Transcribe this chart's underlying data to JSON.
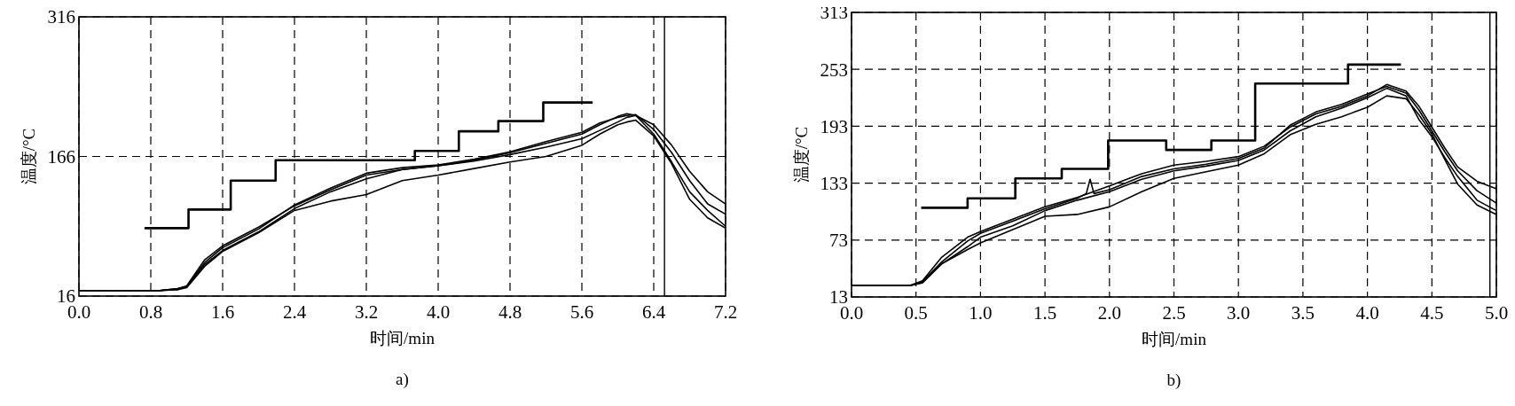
{
  "chart_data": [
    {
      "type": "line",
      "xlabel": "时间/min",
      "ylabel": "温度/°C",
      "annotations": [
        "a)"
      ],
      "xlim": [
        0,
        7.2
      ],
      "ylim": [
        16,
        316
      ],
      "xticks": [
        {
          "value": 0,
          "label": "0.0"
        },
        0.8,
        1.6,
        2.4,
        3.2,
        {
          "value": 4,
          "label": "4.0"
        },
        4.8,
        5.6,
        6.4,
        7.2
      ],
      "yticks": [
        16,
        166,
        316
      ],
      "grid": true,
      "line_style": "solid",
      "ref_lines": [
        {
          "axis": "x",
          "value": 6.52,
          "color": "#000000",
          "line_style": "solid"
        }
      ],
      "series": [
        {
          "type": "step",
          "color": "#000000",
          "x": [
            0.73,
            1.22,
            1.69,
            2.19,
            3.74,
            4.23,
            4.67,
            5.17,
            5.72
          ],
          "values": [
            89,
            109,
            140,
            162,
            172,
            193,
            204,
            224,
            224
          ]
        },
        {
          "color": "#000000",
          "x": [
            0,
            0.9,
            1.1,
            1.2,
            1.4,
            1.6,
            2.0,
            2.4,
            2.8,
            3.2,
            3.6,
            4.0,
            4.4,
            4.8,
            5.2,
            5.6,
            5.8,
            6.0,
            6.1,
            6.2,
            6.4,
            6.6,
            6.8,
            7.0,
            7.2
          ],
          "values": [
            22,
            22,
            24,
            27,
            55,
            70,
            90,
            113,
            130,
            146,
            152,
            156,
            162,
            170,
            180,
            190,
            200,
            209,
            212,
            210,
            190,
            160,
            128,
            108,
            91
          ]
        },
        {
          "color": "#000000",
          "x": [
            0,
            0.9,
            1.1,
            1.2,
            1.4,
            1.6,
            2.0,
            2.4,
            2.8,
            3.2,
            3.6,
            4.0,
            4.4,
            4.8,
            5.2,
            5.6,
            5.8,
            6.0,
            6.1,
            6.2,
            6.4,
            6.6,
            6.8,
            7.0,
            7.2
          ],
          "values": [
            22,
            22,
            24,
            26,
            52,
            68,
            88,
            114,
            132,
            148,
            154,
            157,
            163,
            171,
            182,
            192,
            202,
            208,
            210,
            211,
            195,
            170,
            140,
            115,
            104
          ]
        },
        {
          "color": "#000000",
          "x": [
            0,
            0.9,
            1.1,
            1.2,
            1.4,
            1.6,
            2.0,
            2.4,
            2.8,
            3.2,
            3.6,
            4.0,
            4.4,
            4.8,
            5.2,
            5.6,
            5.8,
            6.0,
            6.1,
            6.2,
            6.4,
            6.6,
            6.8,
            7.0,
            7.2
          ],
          "values": [
            22,
            22,
            23,
            26,
            50,
            65,
            85,
            110,
            128,
            142,
            152,
            156,
            161,
            168,
            176,
            185,
            194,
            203,
            208,
            210,
            200,
            178,
            150,
            128,
            115
          ]
        },
        {
          "color": "#000000",
          "x": [
            0,
            0.9,
            1.1,
            1.2,
            1.4,
            1.6,
            2.0,
            2.4,
            2.8,
            3.2,
            3.6,
            4.0,
            4.4,
            4.8,
            5.2,
            5.6,
            5.8,
            6.0,
            6.1,
            6.2,
            6.4,
            6.6,
            6.8,
            7.0,
            7.2
          ],
          "values": [
            22,
            22,
            23,
            25,
            48,
            64,
            84,
            108,
            118,
            125,
            140,
            146,
            153,
            160,
            166,
            178,
            190,
            200,
            203,
            205,
            188,
            158,
            120,
            100,
            89
          ]
        }
      ]
    },
    {
      "type": "line",
      "xlabel": "时间/min",
      "ylabel": "温度/°C",
      "annotations": [
        "b)"
      ],
      "xlim": [
        0,
        5
      ],
      "ylim": [
        13,
        313
      ],
      "xticks": [
        {
          "value": 0,
          "label": "0.0"
        },
        0.5,
        {
          "value": 1,
          "label": "1.0"
        },
        1.5,
        {
          "value": 2,
          "label": "2.0"
        },
        2.5,
        {
          "value": 3,
          "label": "3.0"
        },
        3.5,
        {
          "value": 4,
          "label": "4.0"
        },
        4.5,
        {
          "value": 5,
          "label": "5.0"
        }
      ],
      "yticks": [
        13,
        73,
        133,
        193,
        253,
        313
      ],
      "grid": true,
      "line_style": "solid",
      "ref_lines": [
        {
          "axis": "x",
          "value": 4.95,
          "color": "#000000",
          "line_style": "solid"
        }
      ],
      "series": [
        {
          "type": "step",
          "color": "#000000",
          "x": [
            0.54,
            0.9,
            1.27,
            1.63,
            1.99,
            2.44,
            2.79,
            3.13,
            3.85,
            4.26
          ],
          "values": [
            107,
            117,
            138,
            148,
            178,
            168,
            178,
            238,
            258,
            258
          ]
        },
        {
          "color": "#000000",
          "x": [
            0,
            0.45,
            0.55,
            0.7,
            0.9,
            1.0,
            1.25,
            1.5,
            1.75,
            2.0,
            2.25,
            2.5,
            2.75,
            3.0,
            3.2,
            3.4,
            3.6,
            3.8,
            4.0,
            4.15,
            4.3,
            4.4,
            4.5,
            4.6,
            4.7,
            4.85,
            5.0
          ],
          "values": [
            25,
            25,
            30,
            55,
            76,
            82,
            95,
            108,
            118,
            130,
            143,
            152,
            156,
            161,
            172,
            192,
            206,
            214,
            225,
            237,
            230,
            214,
            192,
            170,
            150,
            135,
            127
          ]
        },
        {
          "color": "#000000",
          "x": [
            0,
            0.45,
            0.55,
            0.7,
            0.9,
            1.0,
            1.25,
            1.5,
            1.75,
            1.82,
            1.85,
            1.88,
            2.0,
            2.25,
            2.5,
            2.75,
            3.0,
            3.2,
            3.4,
            3.6,
            3.8,
            4.0,
            4.15,
            4.3,
            4.4,
            4.5,
            4.6,
            4.7,
            4.85,
            5.0
          ],
          "values": [
            25,
            25,
            29,
            50,
            72,
            80,
            93,
            106,
            117,
            122,
            137,
            122,
            126,
            140,
            148,
            153,
            159,
            170,
            194,
            208,
            216,
            227,
            235,
            228,
            210,
            188,
            166,
            146,
            125,
            112
          ]
        },
        {
          "color": "#000000",
          "x": [
            0,
            0.45,
            0.55,
            0.7,
            0.9,
            1.0,
            1.25,
            1.5,
            1.75,
            2.0,
            2.25,
            2.5,
            2.75,
            3.0,
            3.2,
            3.4,
            3.6,
            3.8,
            4.0,
            4.15,
            4.3,
            4.4,
            4.5,
            4.6,
            4.7,
            4.85,
            5.0
          ],
          "values": [
            25,
            25,
            28,
            48,
            66,
            76,
            88,
            104,
            115,
            124,
            137,
            146,
            151,
            157,
            168,
            188,
            203,
            212,
            223,
            233,
            225,
            200,
            182,
            160,
            140,
            115,
            104
          ]
        },
        {
          "color": "#000000",
          "x": [
            0,
            0.45,
            0.55,
            0.7,
            0.9,
            1.0,
            1.25,
            1.5,
            1.75,
            2.0,
            2.25,
            2.5,
            2.75,
            3.0,
            3.2,
            3.4,
            3.6,
            3.8,
            4.0,
            4.15,
            4.3,
            4.4,
            4.5,
            4.6,
            4.7,
            4.85,
            5.0
          ],
          "values": [
            25,
            25,
            28,
            48,
            63,
            70,
            84,
            98,
            100,
            108,
            124,
            138,
            145,
            152,
            164,
            184,
            195,
            203,
            213,
            225,
            222,
            205,
            185,
            158,
            132,
            110,
            100
          ]
        }
      ]
    }
  ]
}
